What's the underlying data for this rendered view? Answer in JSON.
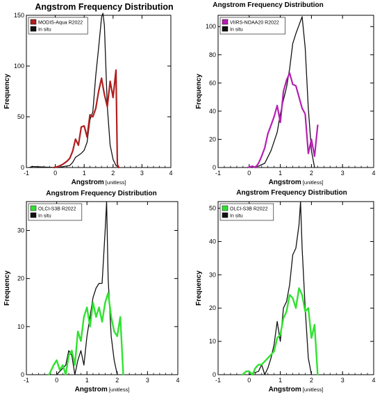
{
  "chart_data": [
    {
      "type": "line",
      "title": "Angstrom  Frequency Distribution",
      "xlabel": "Angstrom",
      "xunit": "[unitless]",
      "ylabel": "Frequency",
      "xlim": [
        -1,
        4
      ],
      "ylim": [
        0,
        150
      ],
      "xticks": [
        "-1",
        "0",
        "1",
        "2",
        "3",
        "4"
      ],
      "yticks": [
        "0",
        "50",
        "100",
        "150"
      ],
      "legend": "top-left",
      "grid": false,
      "series": [
        {
          "name": "MODIS-Aqua R2022",
          "color": "#b11e1e",
          "width": 2.2,
          "x": [
            -0.05,
            0.1,
            0.25,
            0.4,
            0.5,
            0.6,
            0.7,
            0.8,
            0.9,
            1.0,
            1.1,
            1.2,
            1.3,
            1.4,
            1.5,
            1.6,
            1.7,
            1.8,
            1.9,
            2.0,
            2.1,
            2.15,
            2.2
          ],
          "y": [
            0,
            1,
            3,
            6,
            9,
            16,
            28,
            22,
            40,
            41,
            30,
            52,
            50,
            58,
            75,
            88,
            72,
            60,
            85,
            69,
            96,
            3,
            0
          ]
        },
        {
          "name": "In situ",
          "color": "#111111",
          "width": 1.3,
          "x": [
            -0.9,
            -0.8,
            0.0,
            0.1,
            0.3,
            0.5,
            0.6,
            0.7,
            0.8,
            0.9,
            1.0,
            1.1,
            1.2,
            1.3,
            1.4,
            1.5,
            1.6,
            1.65,
            1.7,
            1.8,
            1.9,
            2.0,
            2.1,
            2.2
          ],
          "y": [
            0,
            1,
            0,
            0,
            1,
            2,
            5,
            10,
            12,
            14,
            17,
            25,
            47,
            55,
            90,
            118,
            148,
            152,
            140,
            60,
            22,
            8,
            2,
            0
          ]
        }
      ]
    },
    {
      "type": "line",
      "title": "Angstrom  Frequency Distribution",
      "xlabel": "Angstrom",
      "xunit": "[unitless]",
      "ylabel": "Frequency",
      "xlim": [
        -1,
        4
      ],
      "ylim": [
        0,
        108
      ],
      "xticks": [
        "-1",
        "0",
        "1",
        "2",
        "3",
        "4"
      ],
      "yticks": [
        "0",
        "20",
        "40",
        "60",
        "80",
        "100"
      ],
      "legend": "top-left",
      "grid": false,
      "series": [
        {
          "name": "VIIRS-NOAA20 R2022",
          "color": "#b51fb3",
          "width": 2.2,
          "x": [
            -0.05,
            0.1,
            0.2,
            0.3,
            0.4,
            0.5,
            0.6,
            0.7,
            0.8,
            0.9,
            1.0,
            1.1,
            1.2,
            1.3,
            1.4,
            1.5,
            1.6,
            1.7,
            1.8,
            1.9,
            2.0,
            2.1,
            2.2
          ],
          "y": [
            0,
            1,
            0,
            3,
            8,
            14,
            24,
            30,
            36,
            44,
            32,
            54,
            62,
            67,
            59,
            58,
            50,
            42,
            38,
            10,
            20,
            8,
            30
          ]
        },
        {
          "name": "In situ",
          "color": "#111111",
          "width": 1.3,
          "x": [
            0.1,
            0.3,
            0.5,
            0.7,
            0.9,
            1.0,
            1.1,
            1.2,
            1.3,
            1.4,
            1.5,
            1.6,
            1.7,
            1.8,
            1.9,
            2.0,
            2.1
          ],
          "y": [
            0,
            1,
            3,
            12,
            25,
            38,
            48,
            57,
            70,
            88,
            95,
            101,
            107,
            85,
            42,
            12,
            0
          ]
        }
      ]
    },
    {
      "type": "line",
      "title": "Angstrom  Frequency Distribution",
      "xlabel": "Angstrom",
      "xunit": "[unitless]",
      "ylabel": "Frequency",
      "xlim": [
        -1,
        4
      ],
      "ylim": [
        0,
        36
      ],
      "xticks": [
        "-1",
        "0",
        "1",
        "2",
        "3",
        "4"
      ],
      "yticks": [
        "0",
        "10",
        "20",
        "30"
      ],
      "legend": "top-left",
      "grid": false,
      "series": [
        {
          "name": "OLCI-S3B R2022",
          "color": "#2fe22f",
          "width": 2.4,
          "x": [
            -0.25,
            -0.1,
            0.0,
            0.1,
            0.2,
            0.3,
            0.4,
            0.5,
            0.6,
            0.7,
            0.8,
            0.9,
            1.0,
            1.1,
            1.2,
            1.3,
            1.4,
            1.5,
            1.6,
            1.7,
            1.8,
            1.9,
            2.0,
            2.1,
            2.2
          ],
          "y": [
            0,
            2,
            3,
            1,
            2,
            0,
            4,
            5,
            2,
            9,
            7,
            12,
            14,
            10,
            15,
            12,
            14,
            11,
            15,
            17,
            12,
            9,
            8,
            12,
            0
          ]
        },
        {
          "name": "In situ",
          "color": "#111111",
          "width": 1.3,
          "x": [
            0.0,
            0.3,
            0.4,
            0.5,
            0.6,
            0.7,
            0.8,
            0.9,
            1.0,
            1.1,
            1.2,
            1.3,
            1.4,
            1.5,
            1.6,
            1.65,
            1.7,
            1.8,
            1.9,
            2.0
          ],
          "y": [
            0,
            2,
            5,
            4,
            0,
            3,
            5,
            2,
            8,
            12,
            16,
            18,
            19,
            19,
            30,
            36,
            20,
            8,
            3,
            0
          ]
        }
      ]
    },
    {
      "type": "line",
      "title": "Angstrom  Frequency Distribution",
      "xlabel": "Angstrom",
      "xunit": "[unitless]",
      "ylabel": "Frequency",
      "xlim": [
        -1,
        4
      ],
      "ylim": [
        0,
        52
      ],
      "xticks": [
        "-1",
        "0",
        "1",
        "2",
        "3",
        "4"
      ],
      "yticks": [
        "0",
        "10",
        "20",
        "30",
        "40",
        "50"
      ],
      "legend": "top-left",
      "grid": false,
      "series": [
        {
          "name": "OLCI-S3B R2022",
          "color": "#2fe22f",
          "width": 2.4,
          "x": [
            -0.2,
            -0.1,
            0.0,
            0.1,
            0.2,
            0.3,
            0.4,
            0.5,
            0.6,
            0.7,
            0.8,
            0.9,
            1.0,
            1.1,
            1.2,
            1.3,
            1.4,
            1.5,
            1.6,
            1.7,
            1.8,
            1.9,
            2.0,
            2.1,
            2.2
          ],
          "y": [
            0,
            1,
            1,
            0,
            2,
            3,
            3,
            4,
            5,
            6,
            7,
            11,
            12,
            17,
            19,
            24,
            23,
            20,
            26,
            24,
            19,
            20,
            11,
            15,
            0
          ]
        },
        {
          "name": "In situ",
          "color": "#111111",
          "width": 1.3,
          "x": [
            0.0,
            0.3,
            0.4,
            0.5,
            0.6,
            0.7,
            0.8,
            0.9,
            1.0,
            1.1,
            1.2,
            1.3,
            1.4,
            1.5,
            1.6,
            1.65,
            1.7,
            1.8,
            1.9,
            2.0
          ],
          "y": [
            0,
            1,
            3,
            0,
            2,
            5,
            9,
            16,
            10,
            20,
            22,
            27,
            36,
            38,
            45,
            52,
            38,
            20,
            5,
            0
          ]
        }
      ]
    }
  ]
}
